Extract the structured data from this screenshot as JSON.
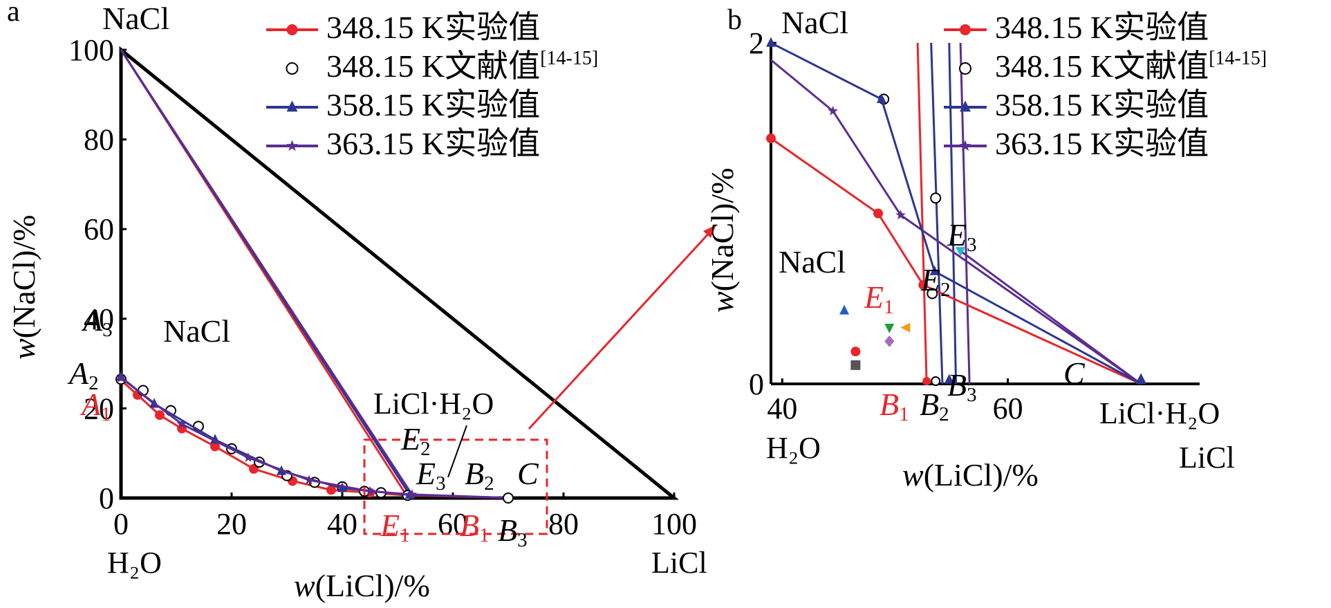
{
  "chart_data": [
    {
      "panel": "a",
      "type": "line",
      "xlabel_var": "w",
      "xlabel_rest": "(LiCl)/%",
      "ylabel_var": "w",
      "ylabel_rest": "(NaCl)/%",
      "xlim": [
        0,
        100
      ],
      "ylim": [
        0,
        100
      ],
      "x_ticks": [
        "0",
        "20",
        "40",
        "60",
        "80",
        "100"
      ],
      "y_ticks": [
        "0",
        "20",
        "40",
        "60",
        "80",
        "100"
      ],
      "corner_labels": {
        "top": "NaCl",
        "bottom_left": "H₂O",
        "bottom_right": "LiCl"
      },
      "region_labels": [
        "NaCl",
        "LiCl·H₂O"
      ],
      "legend": [
        {
          "temp": "348.15 K",
          "kind": "实验值",
          "sup": "",
          "color": "#e8262b",
          "marker": "circle"
        },
        {
          "temp": "348.15 K",
          "kind": "文献值",
          "sup": "[14-15]",
          "color": "#000000",
          "marker": "open-circle"
        },
        {
          "temp": "358.15 K",
          "kind": "实验值",
          "sup": "",
          "color": "#2d3692",
          "marker": "triangle"
        },
        {
          "temp": "363.15 K",
          "kind": "实验值",
          "sup": "",
          "color": "#5b2d91",
          "marker": "star"
        }
      ],
      "series": [
        {
          "name": "348.15 K实验值",
          "color": "#e8262b",
          "marker": "circle",
          "x": [
            0,
            3,
            7,
            11,
            17,
            24,
            31,
            38,
            45,
            51.6
          ],
          "y": [
            26.3,
            23,
            18.5,
            15.5,
            11.5,
            6.5,
            3.8,
            1.8,
            1.2,
            0.6
          ]
        },
        {
          "name": "348.15 K文献值[14-15]",
          "color": "#000000",
          "marker": "open-circle",
          "x": [
            0,
            4,
            9,
            14,
            20,
            25,
            30,
            35,
            40,
            44,
            47,
            51.8,
            70
          ],
          "y": [
            26.5,
            24,
            19.5,
            16,
            11,
            8,
            5,
            3.5,
            2.5,
            1.5,
            1.2,
            0.6,
            0
          ]
        },
        {
          "name": "358.15 K实验值",
          "color": "#2d3692",
          "marker": "triangle",
          "x": [
            0,
            6,
            17,
            29,
            40,
            52.2
          ],
          "y": [
            27,
            21,
            13,
            6,
            2.2,
            0.7
          ]
        },
        {
          "name": "363.15 K实验值",
          "color": "#5b2d91",
          "marker": "star",
          "x": [
            0,
            11,
            23,
            34,
            45,
            52.6
          ],
          "y": [
            26.8,
            16.5,
            9,
            4,
            1.5,
            0.8
          ]
        }
      ],
      "tie_lines": [
        {
          "color": "#e8262b",
          "from": [
            0,
            100
          ],
          "to": [
            51.6,
            0.6
          ]
        },
        {
          "color": "#2d3692",
          "from": [
            0,
            100
          ],
          "to": [
            52.2,
            0.7
          ]
        },
        {
          "color": "#5b2d91",
          "from": [
            0,
            100
          ],
          "to": [
            52.6,
            0.8
          ]
        },
        {
          "color": "#e8262b",
          "from": [
            51.6,
            0.6
          ],
          "to": [
            71,
            0
          ]
        },
        {
          "color": "#2d3692",
          "from": [
            52.2,
            0.7
          ],
          "to": [
            71,
            0
          ]
        },
        {
          "color": "#5b2d91",
          "from": [
            52.6,
            0.8
          ],
          "to": [
            71,
            0
          ]
        }
      ],
      "triangle": {
        "color": "#000000",
        "vertices": [
          [
            0,
            100
          ],
          [
            100,
            0
          ],
          [
            0,
            0
          ]
        ]
      },
      "point_labels": [
        {
          "var": "A",
          "sub": "3",
          "color": "#000000"
        },
        {
          "var": "A",
          "sub": "2",
          "color": "#000000"
        },
        {
          "var": "A",
          "sub": "1",
          "color": "#e8262b"
        },
        {
          "var": "E",
          "sub": "2",
          "color": "#000000"
        },
        {
          "var": "E",
          "sub": "3",
          "color": "#000000"
        },
        {
          "var": "B",
          "sub": "2",
          "color": "#000000"
        },
        {
          "var": "C",
          "sub": "",
          "color": "#000000"
        },
        {
          "var": "E",
          "sub": "1",
          "color": "#e8262b"
        },
        {
          "var": "B",
          "sub": "1",
          "color": "#e8262b"
        },
        {
          "var": "B",
          "sub": "3",
          "color": "#000000"
        }
      ],
      "zoom_box": {
        "xlim": [
          44,
          77
        ],
        "ylim": [
          -8,
          13
        ],
        "color": "#e8262b"
      }
    },
    {
      "panel": "b",
      "type": "line",
      "xlabel_var": "w",
      "xlabel_rest": "(LiCl)/%",
      "ylabel_var": "w",
      "ylabel_rest": "(NaCl)/%",
      "xlim": [
        39,
        77
      ],
      "ylim": [
        0,
        2
      ],
      "x_ticks": [
        "40",
        "60"
      ],
      "y_ticks": [
        "0",
        "2"
      ],
      "corner_labels": {
        "top": "NaCl",
        "bottom_left": "H₂O",
        "bottom_right": "LiCl"
      },
      "region_labels": [
        "NaCl",
        "LiCl·H₂O"
      ],
      "legend": [
        {
          "temp": "348.15 K",
          "kind": "实验值",
          "sup": "",
          "color": "#e8262b",
          "marker": "circle"
        },
        {
          "temp": "348.15 K",
          "kind": "文献值",
          "sup": "[14-15]",
          "color": "#000000",
          "marker": "open-circle"
        },
        {
          "temp": "358.15 K",
          "kind": "实验值",
          "sup": "",
          "color": "#2d3692",
          "marker": "triangle"
        },
        {
          "temp": "363.15 K",
          "kind": "实验值",
          "sup": "",
          "color": "#5b2d91",
          "marker": "star"
        }
      ],
      "series": [
        {
          "name": "348.15 K实验值",
          "color": "#e8262b",
          "marker": "circle",
          "x": [
            39,
            48.5,
            52.5
          ],
          "y": [
            1.44,
            1.0,
            0.58
          ]
        },
        {
          "name": "348.15 K文献值[14-15]",
          "color": "#000000",
          "marker": "open-circle",
          "x": [
            49,
            53.6,
            53.3
          ],
          "y": [
            1.67,
            1.09,
            0.53
          ]
        },
        {
          "name": "358.15 K实验值",
          "color": "#2d3692",
          "marker": "triangle",
          "x": [
            39,
            48.8,
            53.5
          ],
          "y": [
            2.0,
            1.67,
            0.66
          ]
        },
        {
          "name": "363.15 K实验值",
          "color": "#5b2d91",
          "marker": "star",
          "x": [
            39,
            44.5,
            50.5
          ],
          "y": [
            1.9,
            1.6,
            0.99
          ]
        }
      ],
      "tie_lines": [
        {
          "color": "#e8262b",
          "from": [
            52.0,
            2.0
          ],
          "to": [
            52.8,
            0
          ]
        },
        {
          "color": "#2d3692",
          "from": [
            53.2,
            2.0
          ],
          "to": [
            54.2,
            0
          ]
        },
        {
          "color": "#2d3692",
          "from": [
            54.8,
            2.0
          ],
          "to": [
            55.4,
            0
          ]
        },
        {
          "color": "#5b2d91",
          "from": [
            55.8,
            2.0
          ],
          "to": [
            56.6,
            0
          ]
        },
        {
          "color": "#e8262b",
          "from": [
            52.5,
            0.58
          ],
          "to": [
            71.8,
            0
          ]
        },
        {
          "color": "#2d3692",
          "from": [
            53.5,
            0.66
          ],
          "to": [
            71.8,
            0
          ]
        },
        {
          "color": "#5b2d91",
          "from": [
            50.5,
            0.99
          ],
          "to": [
            71.8,
            0
          ]
        },
        {
          "color": "#5b2d91",
          "from": [
            55.8,
            0.78
          ],
          "to": [
            71.8,
            0
          ]
        }
      ],
      "extra_markers": [
        {
          "shape": "triangle-up",
          "color": "#1f5fc4",
          "x": 45.5,
          "y": 0.43
        },
        {
          "shape": "triangle-down",
          "color": "#1e9e3a",
          "x": 49.5,
          "y": 0.33
        },
        {
          "shape": "triangle-left",
          "color": "#f39c12",
          "x": 51.0,
          "y": 0.33
        },
        {
          "shape": "circle",
          "color": "#e8262b",
          "x": 46.5,
          "y": 0.19
        },
        {
          "shape": "diamond",
          "color": "#a569bd",
          "x": 49.5,
          "y": 0.25
        },
        {
          "shape": "square",
          "color": "#555555",
          "x": 46.5,
          "y": 0.11
        },
        {
          "shape": "triangle-down",
          "color": "#29b6d6",
          "x": 55.8,
          "y": 0.78
        }
      ],
      "point_labels": [
        {
          "var": "E",
          "sub": "3",
          "color": "#000000"
        },
        {
          "var": "E",
          "sub": "2",
          "color": "#000000"
        },
        {
          "var": "E",
          "sub": "1",
          "color": "#e8262b"
        },
        {
          "var": "C",
          "sub": "",
          "color": "#000000"
        },
        {
          "var": "B",
          "sub": "1",
          "color": "#e8262b"
        },
        {
          "var": "B",
          "sub": "2",
          "color": "#000000"
        },
        {
          "var": "B",
          "sub": "3",
          "color": "#000000"
        }
      ]
    }
  ]
}
